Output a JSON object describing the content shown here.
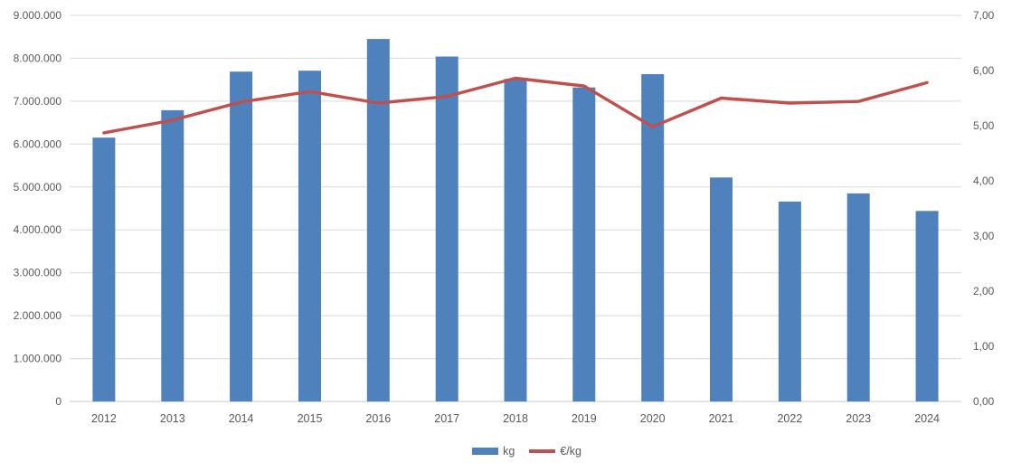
{
  "chart_data": {
    "type": "combo bar+line",
    "title": "",
    "categories": [
      "2012",
      "2013",
      "2014",
      "2015",
      "2016",
      "2017",
      "2018",
      "2019",
      "2020",
      "2021",
      "2022",
      "2023",
      "2024"
    ],
    "series": [
      {
        "name": "kg",
        "type": "bar",
        "axis": "left",
        "color": "#4F81BD",
        "values": [
          6150000,
          6790000,
          7690000,
          7710000,
          8450000,
          8040000,
          7520000,
          7320000,
          7630000,
          5220000,
          4660000,
          4850000,
          4440000
        ]
      },
      {
        "name": "€/kg",
        "type": "line",
        "axis": "right",
        "color": "#C0504D",
        "values": [
          4.87,
          5.1,
          5.43,
          5.62,
          5.41,
          5.53,
          5.86,
          5.72,
          4.98,
          5.5,
          5.41,
          5.44,
          5.78
        ]
      }
    ],
    "left_axis": {
      "label": "",
      "min": 0,
      "max": 9000000,
      "step": 1000000,
      "tick_labels": [
        "0",
        "1.000.000",
        "2.000.000",
        "3.000.000",
        "4.000.000",
        "5.000.000",
        "6.000.000",
        "7.000.000",
        "8.000.000",
        "9.000.000"
      ]
    },
    "right_axis": {
      "label": "",
      "min": 0,
      "max": 7,
      "step": 1,
      "tick_labels": [
        "0,00",
        "1,00",
        "2,00",
        "3,00",
        "4,00",
        "5,00",
        "6,00",
        "7,00"
      ]
    },
    "grid": true,
    "legend_position": "bottom",
    "colors": {
      "grid": "#D9D9D9",
      "axis_line": "#C9C9C9",
      "tick_text": "#595959"
    }
  }
}
